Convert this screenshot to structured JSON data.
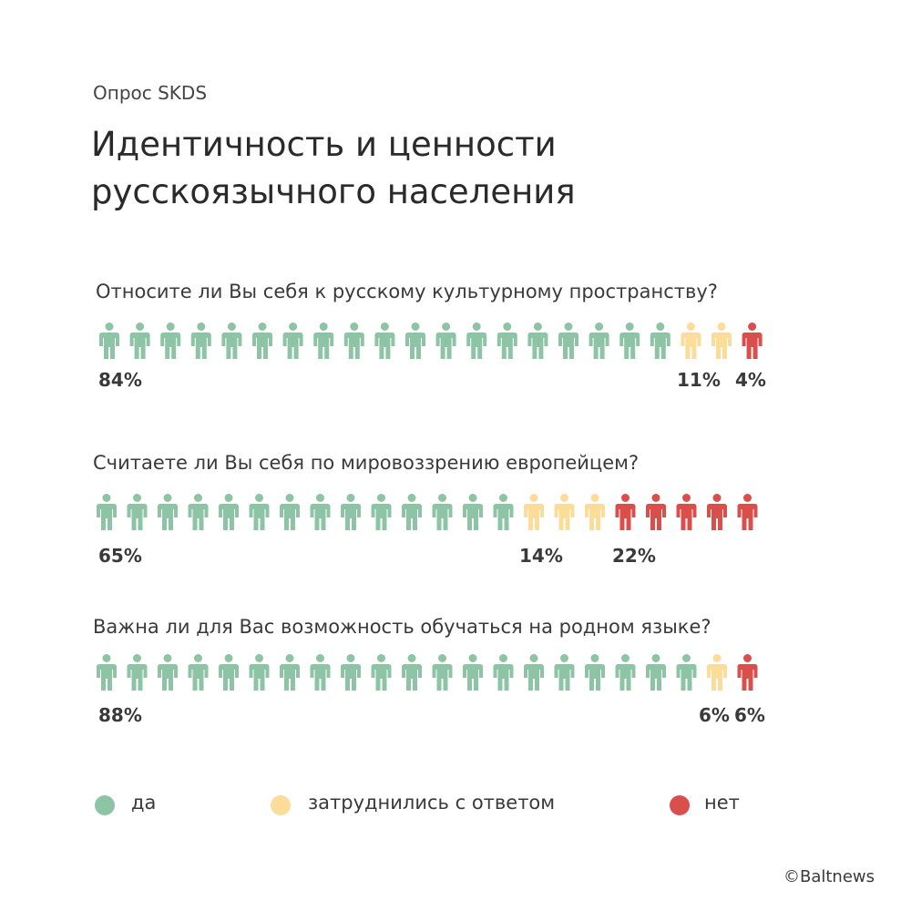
{
  "header": {
    "subtitle": "Опрос SKDS",
    "title_line1": "Идентичность и ценности",
    "title_line2": "русскоязычного населения"
  },
  "colors": {
    "yes": "#8dc4a5",
    "hard": "#fbdc98",
    "no": "#d84f4c"
  },
  "legend": {
    "yes": "да",
    "hard": "затруднились с ответом",
    "no": "нет"
  },
  "credit": "©Baltnews",
  "chart_data": [
    {
      "type": "pictogram",
      "question": "Относите ли Вы себя к русскому культурному пространству?",
      "categories": [
        "да",
        "затруднились с ответом",
        "нет"
      ],
      "values": [
        84,
        11,
        4
      ],
      "labels": [
        "84%",
        "11%",
        "4%"
      ],
      "icon_counts": [
        19,
        2,
        1
      ]
    },
    {
      "type": "pictogram",
      "question": "Считаете ли Вы себя по мировоззрению европейцем?",
      "categories": [
        "да",
        "затруднились с ответом",
        "нет"
      ],
      "values": [
        65,
        14,
        22
      ],
      "labels": [
        "65%",
        "14%",
        "22%"
      ],
      "icon_counts": [
        14,
        3,
        5
      ]
    },
    {
      "type": "pictogram",
      "question": "Важна ли для Вас возможность обучаться на родном языке?",
      "categories": [
        "да",
        "затруднились с ответом",
        "нет"
      ],
      "values": [
        88,
        6,
        6
      ],
      "labels": [
        "88%",
        "6%",
        "6%"
      ],
      "icon_counts": [
        20,
        1,
        1
      ]
    }
  ]
}
